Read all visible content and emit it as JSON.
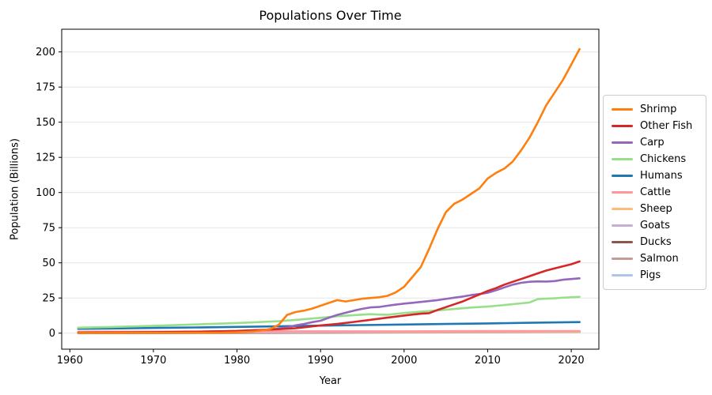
{
  "chart_data": {
    "type": "line",
    "title": "Populations Over Time",
    "xlabel": "Year",
    "ylabel": "Population (Billions)",
    "xticks": [
      1960,
      1970,
      1980,
      1990,
      2000,
      2010,
      2020
    ],
    "yticks": [
      0,
      25,
      50,
      75,
      100,
      125,
      150,
      175,
      200
    ],
    "xlim": [
      1959,
      2023.3
    ],
    "ylim": [
      -11,
      216
    ],
    "grid": "horizontal",
    "legend_position": "outside-right",
    "axis_color": "#000000",
    "grid_color": "#e5e5e5",
    "series": [
      {
        "name": "Shrimp",
        "color": "#ff7f0e",
        "points": [
          [
            1961,
            0.1
          ],
          [
            1965,
            0.15
          ],
          [
            1970,
            0.2
          ],
          [
            1975,
            0.3
          ],
          [
            1978,
            0.4
          ],
          [
            1980,
            0.6
          ],
          [
            1982,
            1.2
          ],
          [
            1983,
            2
          ],
          [
            1984,
            3
          ],
          [
            1985,
            6
          ],
          [
            1986,
            13
          ],
          [
            1987,
            15
          ],
          [
            1988,
            16
          ],
          [
            1989,
            17.5
          ],
          [
            1990,
            19.5
          ],
          [
            1991,
            21.5
          ],
          [
            1992,
            23.5
          ],
          [
            1993,
            22.5
          ],
          [
            1994,
            23.5
          ],
          [
            1995,
            24.5
          ],
          [
            1996,
            25
          ],
          [
            1997,
            25.5
          ],
          [
            1998,
            26.5
          ],
          [
            1999,
            29
          ],
          [
            2000,
            33
          ],
          [
            2001,
            40
          ],
          [
            2002,
            47
          ],
          [
            2003,
            60
          ],
          [
            2004,
            74
          ],
          [
            2005,
            86
          ],
          [
            2006,
            92
          ],
          [
            2007,
            95
          ],
          [
            2008,
            99
          ],
          [
            2009,
            103
          ],
          [
            2010,
            110
          ],
          [
            2011,
            114
          ],
          [
            2012,
            117
          ],
          [
            2013,
            122
          ],
          [
            2014,
            130
          ],
          [
            2015,
            139
          ],
          [
            2016,
            150
          ],
          [
            2017,
            162
          ],
          [
            2018,
            171
          ],
          [
            2019,
            180
          ],
          [
            2020,
            191
          ],
          [
            2021,
            202
          ]
        ]
      },
      {
        "name": "Other Fish",
        "color": "#d62728",
        "points": [
          [
            1961,
            0.4
          ],
          [
            1970,
            0.7
          ],
          [
            1975,
            1
          ],
          [
            1980,
            1.6
          ],
          [
            1985,
            2.8
          ],
          [
            1987,
            3.5
          ],
          [
            1990,
            5.5
          ],
          [
            1992,
            6.5
          ],
          [
            1994,
            8
          ],
          [
            1996,
            9.5
          ],
          [
            1998,
            11
          ],
          [
            2000,
            12.5
          ],
          [
            2001,
            13.2
          ],
          [
            2002,
            13.8
          ],
          [
            2003,
            14.2
          ],
          [
            2004,
            16.5
          ],
          [
            2005,
            18.5
          ],
          [
            2006,
            20.5
          ],
          [
            2007,
            22.5
          ],
          [
            2008,
            25
          ],
          [
            2009,
            27.5
          ],
          [
            2010,
            30
          ],
          [
            2011,
            32
          ],
          [
            2012,
            34.5
          ],
          [
            2013,
            36.5
          ],
          [
            2014,
            38.5
          ],
          [
            2015,
            40.5
          ],
          [
            2016,
            42.5
          ],
          [
            2017,
            44.5
          ],
          [
            2018,
            46
          ],
          [
            2019,
            47.5
          ],
          [
            2020,
            49
          ],
          [
            2021,
            51
          ]
        ]
      },
      {
        "name": "Carp",
        "color": "#9467bd",
        "points": [
          [
            1961,
            0.3
          ],
          [
            1970,
            0.6
          ],
          [
            1975,
            1
          ],
          [
            1980,
            1.5
          ],
          [
            1983,
            2.2
          ],
          [
            1985,
            3.2
          ],
          [
            1986,
            4
          ],
          [
            1987,
            5.5
          ],
          [
            1988,
            6.5
          ],
          [
            1989,
            7.8
          ],
          [
            1990,
            8.8
          ],
          [
            1991,
            11
          ],
          [
            1992,
            13
          ],
          [
            1993,
            14.5
          ],
          [
            1994,
            16
          ],
          [
            1995,
            17.3
          ],
          [
            1996,
            18.3
          ],
          [
            1997,
            18.6
          ],
          [
            1998,
            19.5
          ],
          [
            1999,
            20.3
          ],
          [
            2000,
            21
          ],
          [
            2001,
            21.6
          ],
          [
            2002,
            22.2
          ],
          [
            2003,
            22.8
          ],
          [
            2004,
            23.5
          ],
          [
            2005,
            24.3
          ],
          [
            2006,
            25.2
          ],
          [
            2007,
            26
          ],
          [
            2008,
            27
          ],
          [
            2009,
            27.8
          ],
          [
            2010,
            28.7
          ],
          [
            2011,
            30.5
          ],
          [
            2012,
            32.5
          ],
          [
            2013,
            34.5
          ],
          [
            2014,
            35.8
          ],
          [
            2015,
            36.5
          ],
          [
            2016,
            36.8
          ],
          [
            2017,
            36.7
          ],
          [
            2018,
            37
          ],
          [
            2019,
            38
          ],
          [
            2020,
            38.5
          ],
          [
            2021,
            39
          ]
        ]
      },
      {
        "name": "Chickens",
        "color": "#98df8a",
        "points": [
          [
            1961,
            3.9
          ],
          [
            1965,
            4.4
          ],
          [
            1970,
            5.2
          ],
          [
            1975,
            6.2
          ],
          [
            1980,
            7.2
          ],
          [
            1985,
            8.5
          ],
          [
            1988,
            9.9
          ],
          [
            1990,
            10.9
          ],
          [
            1992,
            12
          ],
          [
            1994,
            12.8
          ],
          [
            1996,
            13.5
          ],
          [
            1997,
            13.2
          ],
          [
            1998,
            13.1
          ],
          [
            2000,
            14.3
          ],
          [
            2002,
            15.3
          ],
          [
            2004,
            16.2
          ],
          [
            2006,
            17.2
          ],
          [
            2008,
            18.2
          ],
          [
            2010,
            18.9
          ],
          [
            2012,
            20
          ],
          [
            2014,
            21.2
          ],
          [
            2015,
            21.8
          ],
          [
            2016,
            24.2
          ],
          [
            2017,
            24.5
          ],
          [
            2018,
            24.8
          ],
          [
            2019,
            25.2
          ],
          [
            2020,
            25.5
          ],
          [
            2021,
            25.8
          ]
        ]
      },
      {
        "name": "Humans",
        "color": "#1f77b4",
        "points": [
          [
            1961,
            3.07
          ],
          [
            1965,
            3.32
          ],
          [
            1970,
            3.68
          ],
          [
            1975,
            4.06
          ],
          [
            1980,
            4.44
          ],
          [
            1985,
            4.85
          ],
          [
            1990,
            5.31
          ],
          [
            1995,
            5.72
          ],
          [
            2000,
            6.12
          ],
          [
            2005,
            6.52
          ],
          [
            2010,
            6.93
          ],
          [
            2015,
            7.35
          ],
          [
            2021,
            7.88
          ]
        ]
      },
      {
        "name": "Cattle",
        "color": "#ff9896",
        "points": [
          [
            1961,
            0.94
          ],
          [
            1970,
            1.08
          ],
          [
            1980,
            1.22
          ],
          [
            1990,
            1.3
          ],
          [
            2000,
            1.32
          ],
          [
            2010,
            1.45
          ],
          [
            2021,
            1.53
          ]
        ]
      },
      {
        "name": "Sheep",
        "color": "#ffbb78",
        "points": [
          [
            1961,
            0.99
          ],
          [
            1970,
            1.06
          ],
          [
            1980,
            1.1
          ],
          [
            1990,
            1.21
          ],
          [
            2000,
            1.06
          ],
          [
            2010,
            1.16
          ],
          [
            2021,
            1.28
          ]
        ]
      },
      {
        "name": "Goats",
        "color": "#c5b0d5",
        "points": [
          [
            1961,
            0.35
          ],
          [
            1970,
            0.38
          ],
          [
            1980,
            0.46
          ],
          [
            1990,
            0.59
          ],
          [
            2000,
            0.75
          ],
          [
            2010,
            0.92
          ],
          [
            2021,
            1.11
          ]
        ]
      },
      {
        "name": "Ducks",
        "color": "#8c564b",
        "points": [
          [
            1961,
            0.19
          ],
          [
            1970,
            0.25
          ],
          [
            1980,
            0.29
          ],
          [
            1990,
            0.56
          ],
          [
            2000,
            0.89
          ],
          [
            2005,
            1.05
          ],
          [
            2010,
            1.15
          ],
          [
            2015,
            1.18
          ],
          [
            2021,
            1.15
          ]
        ]
      },
      {
        "name": "Salmon",
        "color": "#c49c94",
        "points": [
          [
            1961,
            0.02
          ],
          [
            1980,
            0.05
          ],
          [
            1990,
            0.2
          ],
          [
            2000,
            0.4
          ],
          [
            2010,
            0.6
          ],
          [
            2021,
            0.9
          ]
        ]
      },
      {
        "name": "Pigs",
        "color": "#aec7e8",
        "points": [
          [
            1961,
            0.41
          ],
          [
            1970,
            0.55
          ],
          [
            1980,
            0.78
          ],
          [
            1990,
            0.86
          ],
          [
            2000,
            0.9
          ],
          [
            2010,
            0.97
          ],
          [
            2021,
            0.98
          ]
        ]
      }
    ]
  }
}
